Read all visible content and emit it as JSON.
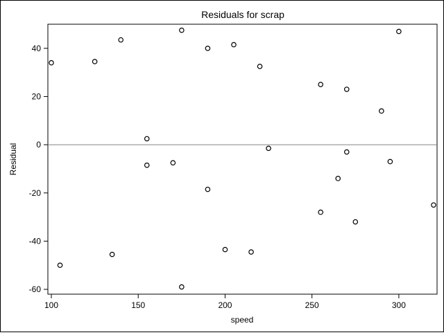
{
  "chart_data": {
    "type": "scatter",
    "title": "Residuals for scrap",
    "xlabel": "speed",
    "ylabel": "Residual",
    "xlim": [
      98,
      322
    ],
    "ylim": [
      -62,
      50
    ],
    "xticks": [
      100,
      150,
      200,
      250,
      300
    ],
    "yticks": [
      -60,
      -40,
      -20,
      0,
      20,
      40
    ],
    "reference_line_y": 0,
    "grid": false,
    "legend": "none",
    "marker": "open-circle",
    "colors": {
      "points": "#000000",
      "reference_line": "#808080",
      "axes": "#000000"
    },
    "points": [
      {
        "x": 100,
        "y": 34
      },
      {
        "x": 105,
        "y": -50
      },
      {
        "x": 125,
        "y": 34.5
      },
      {
        "x": 135,
        "y": -45.5
      },
      {
        "x": 140,
        "y": 43.5
      },
      {
        "x": 155,
        "y": 2.5
      },
      {
        "x": 155,
        "y": -8.5
      },
      {
        "x": 170,
        "y": -7.5
      },
      {
        "x": 175,
        "y": 47.5
      },
      {
        "x": 175,
        "y": -59
      },
      {
        "x": 190,
        "y": 40
      },
      {
        "x": 190,
        "y": -18.5
      },
      {
        "x": 200,
        "y": -43.5
      },
      {
        "x": 205,
        "y": 41.5
      },
      {
        "x": 215,
        "y": -44.5
      },
      {
        "x": 220,
        "y": 32.5
      },
      {
        "x": 225,
        "y": -1.5
      },
      {
        "x": 255,
        "y": 25
      },
      {
        "x": 255,
        "y": -28
      },
      {
        "x": 265,
        "y": -14
      },
      {
        "x": 270,
        "y": 23
      },
      {
        "x": 270,
        "y": -3
      },
      {
        "x": 275,
        "y": -32
      },
      {
        "x": 290,
        "y": 14
      },
      {
        "x": 295,
        "y": -7
      },
      {
        "x": 300,
        "y": 47
      },
      {
        "x": 320,
        "y": -25
      }
    ]
  }
}
